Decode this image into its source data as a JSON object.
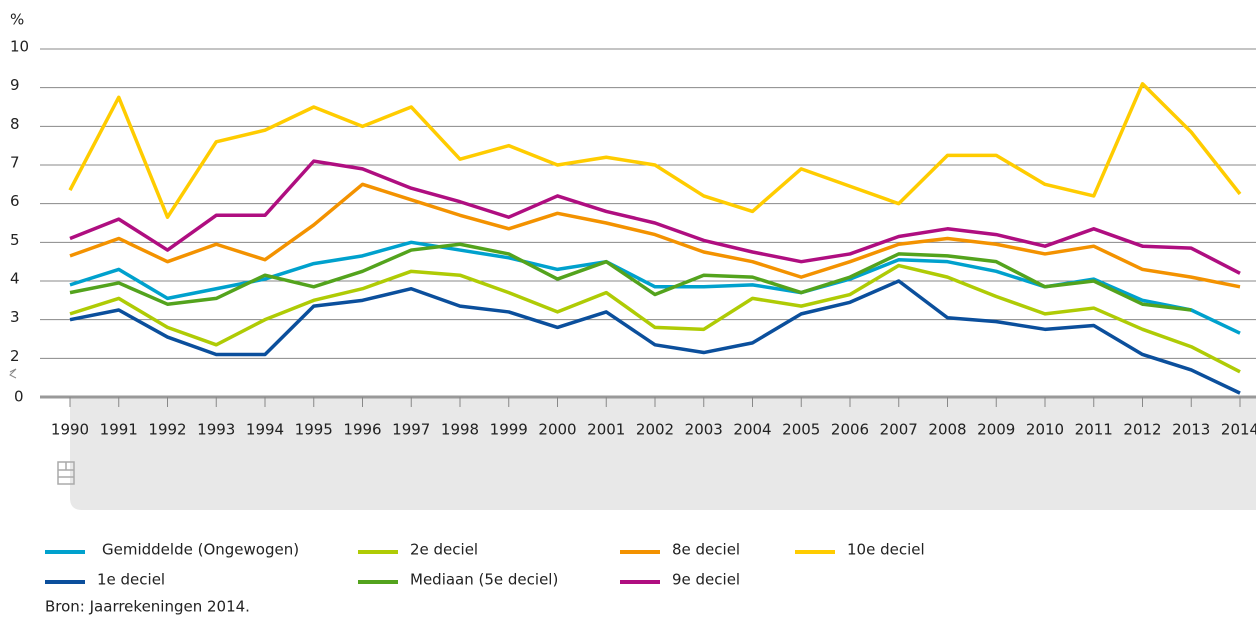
{
  "chart_data": {
    "type": "line",
    "y_label": "%",
    "axis_break_label": "0",
    "categories": [
      "1990",
      "1991",
      "1992",
      "1993",
      "1994",
      "1995",
      "1996",
      "1997",
      "1998",
      "1999",
      "2000",
      "2001",
      "2002",
      "2003",
      "2004",
      "2005",
      "2006",
      "2007",
      "2008",
      "2009",
      "2010",
      "2011",
      "2012",
      "2013",
      "2014"
    ],
    "ylim": [
      1,
      10
    ],
    "yticks": [
      2,
      3,
      4,
      5,
      6,
      7,
      8,
      9,
      10
    ],
    "grid": true,
    "series": [
      {
        "name": "Gemiddelde (Ongewogen)",
        "color": "#00a1cd",
        "values": [
          3.9,
          4.3,
          3.55,
          3.8,
          4.05,
          4.45,
          4.65,
          5.0,
          4.8,
          4.6,
          4.3,
          4.5,
          3.85,
          3.85,
          3.9,
          3.7,
          4.05,
          4.55,
          4.5,
          4.25,
          3.85,
          4.05,
          3.5,
          3.25,
          2.65
        ]
      },
      {
        "name": "1e deciel",
        "color": "#0b4f9c",
        "values": [
          3.0,
          3.25,
          2.55,
          2.1,
          2.1,
          3.35,
          3.5,
          3.8,
          3.35,
          3.2,
          2.8,
          3.2,
          2.35,
          2.15,
          2.4,
          3.15,
          3.45,
          4.0,
          3.05,
          2.95,
          2.75,
          2.85,
          2.1,
          1.7,
          1.1
        ]
      },
      {
        "name": "2e deciel",
        "color": "#afcb05",
        "values": [
          3.15,
          3.55,
          2.8,
          2.35,
          3.0,
          3.5,
          3.8,
          4.25,
          4.15,
          3.7,
          3.2,
          3.7,
          2.8,
          2.75,
          3.55,
          3.35,
          3.65,
          4.4,
          4.1,
          3.6,
          3.15,
          3.3,
          2.75,
          2.3,
          1.65
        ]
      },
      {
        "name": "Mediaan (5e deciel)",
        "color": "#53a31d",
        "values": [
          3.7,
          3.95,
          3.4,
          3.55,
          4.15,
          3.85,
          4.25,
          4.8,
          4.95,
          4.7,
          4.05,
          4.5,
          3.65,
          4.15,
          4.1,
          3.7,
          4.1,
          4.7,
          4.65,
          4.5,
          3.85,
          4.0,
          3.4,
          3.25,
          null
        ]
      },
      {
        "name": "8e deciel",
        "color": "#f39200",
        "values": [
          4.65,
          5.1,
          4.5,
          4.95,
          4.55,
          5.45,
          6.5,
          6.1,
          5.7,
          5.35,
          5.75,
          5.5,
          5.2,
          4.75,
          4.5,
          4.1,
          4.5,
          4.95,
          5.1,
          4.95,
          4.7,
          4.9,
          4.3,
          4.1,
          3.85
        ]
      },
      {
        "name": "9e deciel",
        "color": "#af0e80",
        "values": [
          5.1,
          5.6,
          4.8,
          5.7,
          5.7,
          7.1,
          6.9,
          6.4,
          6.05,
          5.65,
          6.2,
          5.8,
          5.5,
          5.05,
          4.75,
          4.5,
          4.7,
          5.15,
          5.35,
          5.2,
          4.9,
          5.35,
          4.9,
          4.85,
          4.2
        ]
      },
      {
        "name": "10e deciel",
        "color": "#ffcc00",
        "values": [
          6.35,
          8.75,
          5.65,
          7.6,
          7.9,
          8.5,
          8.0,
          8.5,
          7.15,
          7.5,
          7.0,
          7.2,
          7.0,
          6.2,
          5.8,
          6.9,
          6.45,
          6.0,
          7.25,
          7.25,
          6.5,
          6.2,
          9.1,
          7.85,
          6.25
        ]
      }
    ],
    "source": "Bron: Jaarrekeningen 2014."
  }
}
